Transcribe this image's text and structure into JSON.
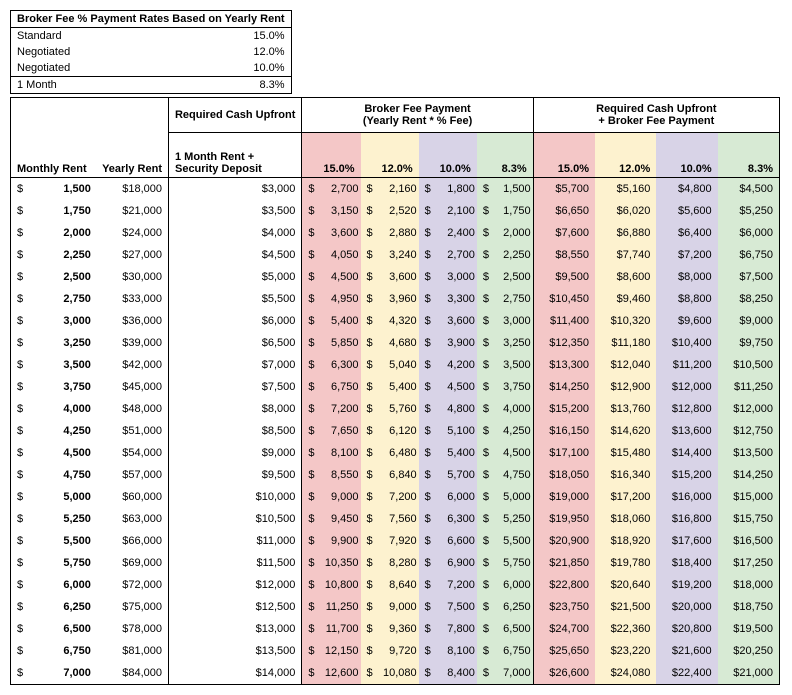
{
  "rates_box": {
    "title": "Broker Fee % Payment Rates Based on Yearly Rent",
    "rows": [
      {
        "label": "Standard",
        "value": "15.0%",
        "sep": true
      },
      {
        "label": "Negotiated",
        "value": "12.0%",
        "sep": false
      },
      {
        "label": "Negotiated",
        "value": "10.0%",
        "sep": false
      },
      {
        "label": "1 Month",
        "value": "8.3%",
        "sep": true
      }
    ]
  },
  "headers": {
    "group": {
      "cash_upfront": "Required Cash Upfront",
      "broker_fee": "Broker Fee Payment\n(Yearly Rent * % Fee)",
      "total": "Required Cash Upfront\n+ Broker Fee Payment"
    },
    "cols": {
      "monthly_rent": "Monthly Rent",
      "yearly_rent": "Yearly Rent",
      "deposit": "1 Month Rent + Security Deposit",
      "pct": [
        "15.0%",
        "12.0%",
        "10.0%",
        "8.3%"
      ]
    }
  },
  "colors": {
    "c15": "#f4c7c7",
    "c12": "#fdf2cf",
    "c10": "#d8d3e7",
    "c8": "#d7ead4"
  },
  "rows": [
    {
      "m": "1,500",
      "y": "$18,000",
      "d": "$3,000",
      "b": [
        "2,700",
        "2,160",
        "1,800",
        "1,500"
      ],
      "t": [
        "$5,700",
        "$5,160",
        "$4,800",
        "$4,500"
      ]
    },
    {
      "m": "1,750",
      "y": "$21,000",
      "d": "$3,500",
      "b": [
        "3,150",
        "2,520",
        "2,100",
        "1,750"
      ],
      "t": [
        "$6,650",
        "$6,020",
        "$5,600",
        "$5,250"
      ]
    },
    {
      "m": "2,000",
      "y": "$24,000",
      "d": "$4,000",
      "b": [
        "3,600",
        "2,880",
        "2,400",
        "2,000"
      ],
      "t": [
        "$7,600",
        "$6,880",
        "$6,400",
        "$6,000"
      ]
    },
    {
      "m": "2,250",
      "y": "$27,000",
      "d": "$4,500",
      "b": [
        "4,050",
        "3,240",
        "2,700",
        "2,250"
      ],
      "t": [
        "$8,550",
        "$7,740",
        "$7,200",
        "$6,750"
      ]
    },
    {
      "m": "2,500",
      "y": "$30,000",
      "d": "$5,000",
      "b": [
        "4,500",
        "3,600",
        "3,000",
        "2,500"
      ],
      "t": [
        "$9,500",
        "$8,600",
        "$8,000",
        "$7,500"
      ]
    },
    {
      "m": "2,750",
      "y": "$33,000",
      "d": "$5,500",
      "b": [
        "4,950",
        "3,960",
        "3,300",
        "2,750"
      ],
      "t": [
        "$10,450",
        "$9,460",
        "$8,800",
        "$8,250"
      ]
    },
    {
      "m": "3,000",
      "y": "$36,000",
      "d": "$6,000",
      "b": [
        "5,400",
        "4,320",
        "3,600",
        "3,000"
      ],
      "t": [
        "$11,400",
        "$10,320",
        "$9,600",
        "$9,000"
      ]
    },
    {
      "m": "3,250",
      "y": "$39,000",
      "d": "$6,500",
      "b": [
        "5,850",
        "4,680",
        "3,900",
        "3,250"
      ],
      "t": [
        "$12,350",
        "$11,180",
        "$10,400",
        "$9,750"
      ]
    },
    {
      "m": "3,500",
      "y": "$42,000",
      "d": "$7,000",
      "b": [
        "6,300",
        "5,040",
        "4,200",
        "3,500"
      ],
      "t": [
        "$13,300",
        "$12,040",
        "$11,200",
        "$10,500"
      ]
    },
    {
      "m": "3,750",
      "y": "$45,000",
      "d": "$7,500",
      "b": [
        "6,750",
        "5,400",
        "4,500",
        "3,750"
      ],
      "t": [
        "$14,250",
        "$12,900",
        "$12,000",
        "$11,250"
      ]
    },
    {
      "m": "4,000",
      "y": "$48,000",
      "d": "$8,000",
      "b": [
        "7,200",
        "5,760",
        "4,800",
        "4,000"
      ],
      "t": [
        "$15,200",
        "$13,760",
        "$12,800",
        "$12,000"
      ]
    },
    {
      "m": "4,250",
      "y": "$51,000",
      "d": "$8,500",
      "b": [
        "7,650",
        "6,120",
        "5,100",
        "4,250"
      ],
      "t": [
        "$16,150",
        "$14,620",
        "$13,600",
        "$12,750"
      ]
    },
    {
      "m": "4,500",
      "y": "$54,000",
      "d": "$9,000",
      "b": [
        "8,100",
        "6,480",
        "5,400",
        "4,500"
      ],
      "t": [
        "$17,100",
        "$15,480",
        "$14,400",
        "$13,500"
      ]
    },
    {
      "m": "4,750",
      "y": "$57,000",
      "d": "$9,500",
      "b": [
        "8,550",
        "6,840",
        "5,700",
        "4,750"
      ],
      "t": [
        "$18,050",
        "$16,340",
        "$15,200",
        "$14,250"
      ]
    },
    {
      "m": "5,000",
      "y": "$60,000",
      "d": "$10,000",
      "b": [
        "9,000",
        "7,200",
        "6,000",
        "5,000"
      ],
      "t": [
        "$19,000",
        "$17,200",
        "$16,000",
        "$15,000"
      ]
    },
    {
      "m": "5,250",
      "y": "$63,000",
      "d": "$10,500",
      "b": [
        "9,450",
        "7,560",
        "6,300",
        "5,250"
      ],
      "t": [
        "$19,950",
        "$18,060",
        "$16,800",
        "$15,750"
      ]
    },
    {
      "m": "5,500",
      "y": "$66,000",
      "d": "$11,000",
      "b": [
        "9,900",
        "7,920",
        "6,600",
        "5,500"
      ],
      "t": [
        "$20,900",
        "$18,920",
        "$17,600",
        "$16,500"
      ]
    },
    {
      "m": "5,750",
      "y": "$69,000",
      "d": "$11,500",
      "b": [
        "10,350",
        "8,280",
        "6,900",
        "5,750"
      ],
      "t": [
        "$21,850",
        "$19,780",
        "$18,400",
        "$17,250"
      ]
    },
    {
      "m": "6,000",
      "y": "$72,000",
      "d": "$12,000",
      "b": [
        "10,800",
        "8,640",
        "7,200",
        "6,000"
      ],
      "t": [
        "$22,800",
        "$20,640",
        "$19,200",
        "$18,000"
      ]
    },
    {
      "m": "6,250",
      "y": "$75,000",
      "d": "$12,500",
      "b": [
        "11,250",
        "9,000",
        "7,500",
        "6,250"
      ],
      "t": [
        "$23,750",
        "$21,500",
        "$20,000",
        "$18,750"
      ]
    },
    {
      "m": "6,500",
      "y": "$78,000",
      "d": "$13,000",
      "b": [
        "11,700",
        "9,360",
        "7,800",
        "6,500"
      ],
      "t": [
        "$24,700",
        "$22,360",
        "$20,800",
        "$19,500"
      ]
    },
    {
      "m": "6,750",
      "y": "$81,000",
      "d": "$13,500",
      "b": [
        "12,150",
        "9,720",
        "8,100",
        "6,750"
      ],
      "t": [
        "$25,650",
        "$23,220",
        "$21,600",
        "$20,250"
      ]
    },
    {
      "m": "7,000",
      "y": "$84,000",
      "d": "$14,000",
      "b": [
        "12,600",
        "10,080",
        "8,400",
        "7,000"
      ],
      "t": [
        "$26,600",
        "$24,080",
        "$22,400",
        "$21,000"
      ]
    }
  ]
}
